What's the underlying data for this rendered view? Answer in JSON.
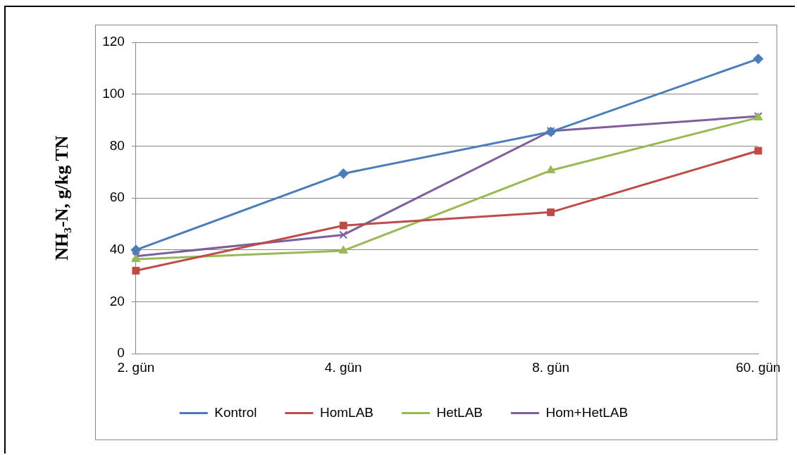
{
  "chart_data": {
    "type": "line",
    "ylabel": "NH₃-N, g/kg TN",
    "categories": [
      "2. gün",
      "4. gün",
      "8. gün",
      "60. gün"
    ],
    "series": [
      {
        "name": "Kontrol",
        "color": "#4a7ebb",
        "marker": "diamond",
        "values": [
          40,
          69.4,
          85.5,
          113.6
        ]
      },
      {
        "name": "HomLAB",
        "color": "#be4b48",
        "marker": "square",
        "values": [
          32,
          49.4,
          54.5,
          78.2
        ]
      },
      {
        "name": "HetLAB",
        "color": "#98b954",
        "marker": "triangle",
        "values": [
          36.4,
          39.7,
          70.6,
          91
        ]
      },
      {
        "name": "Hom+HetLAB",
        "color": "#7d5fa0",
        "marker": "cross",
        "values": [
          37.6,
          45.8,
          85.8,
          91.5
        ]
      }
    ],
    "ylim": [
      0,
      120
    ],
    "yticks": [
      0,
      20,
      40,
      60,
      80,
      100,
      120
    ],
    "grid": "y",
    "legend": "bottom"
  }
}
